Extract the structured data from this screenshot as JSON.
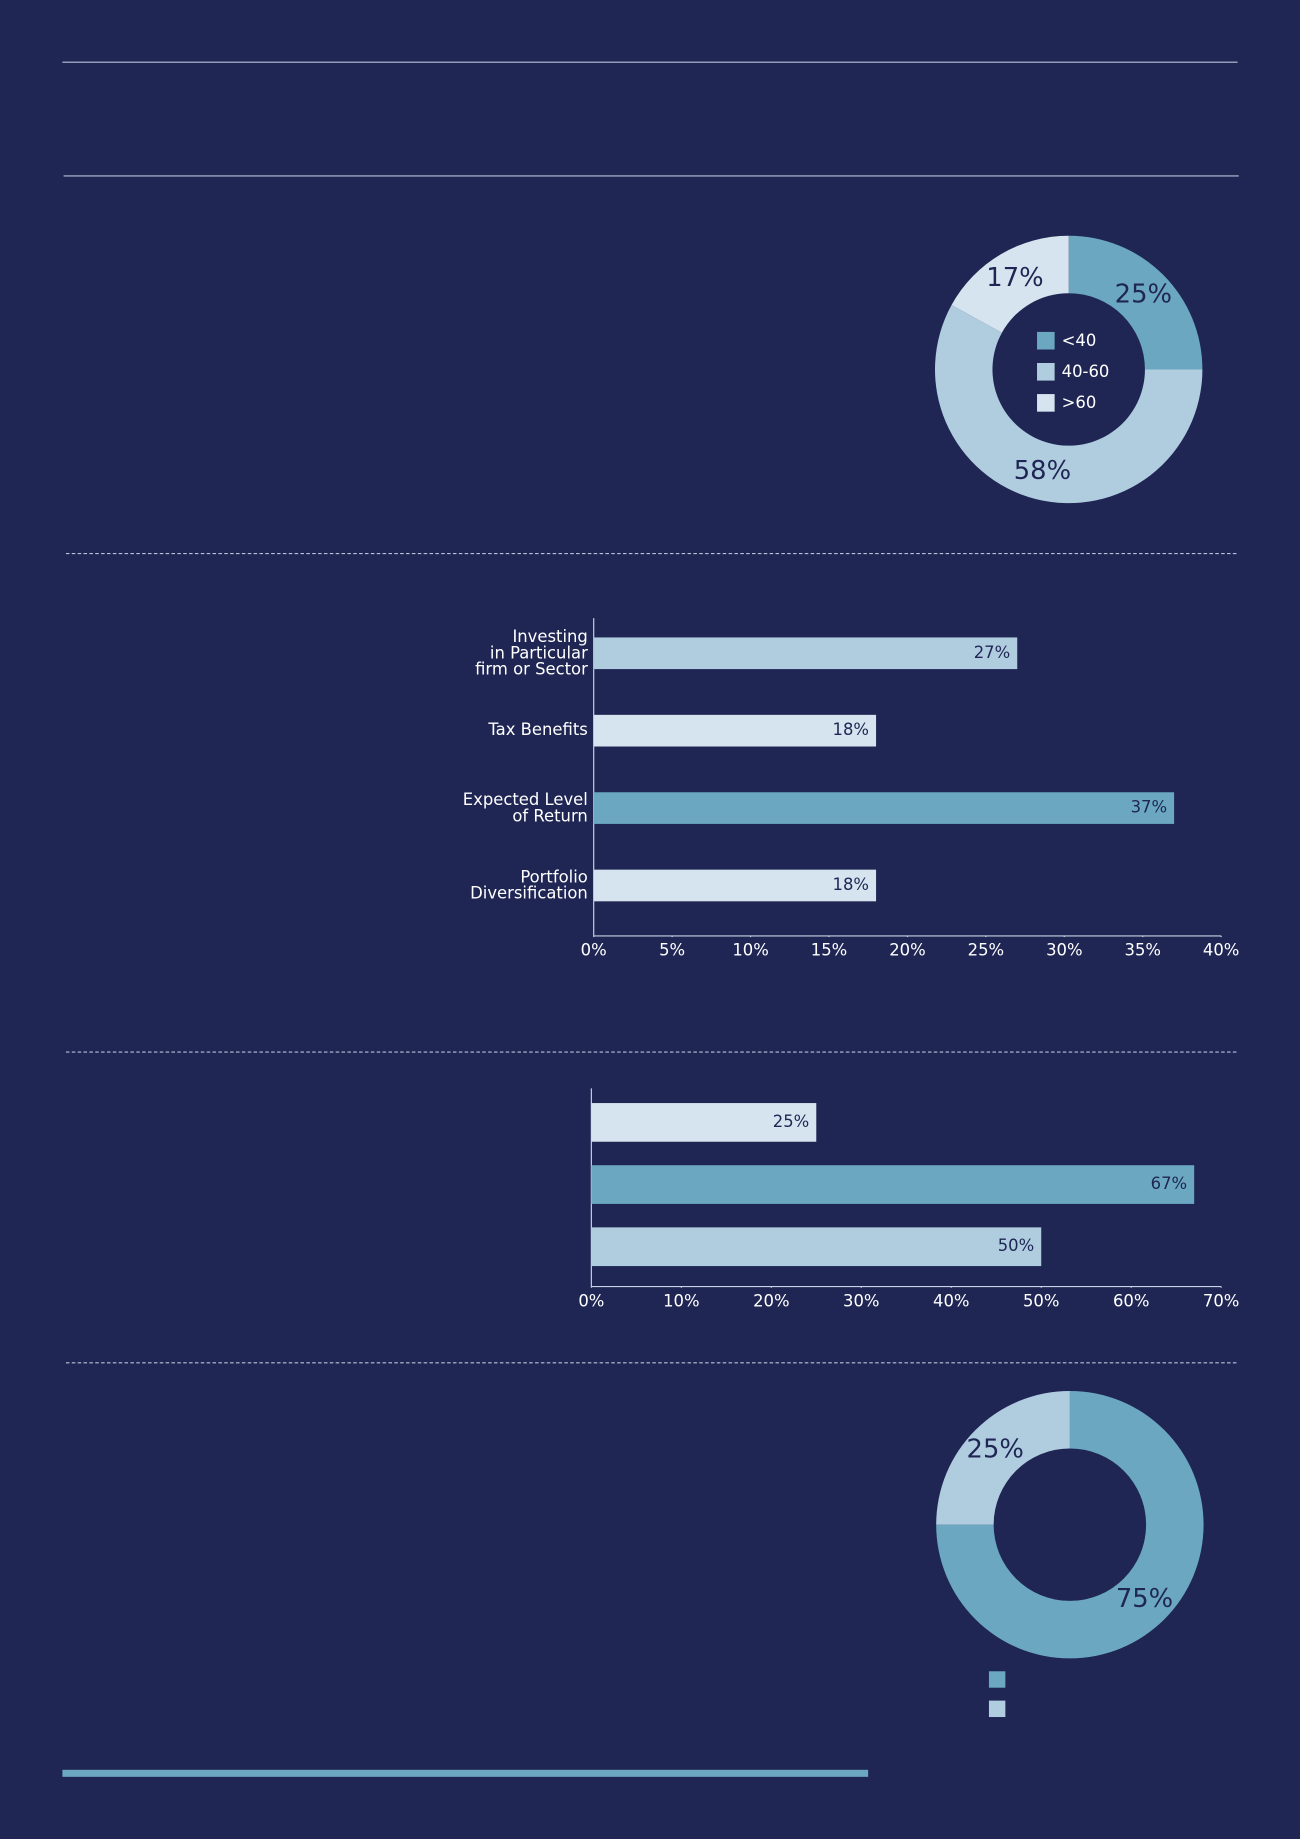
{
  "chart_data": [
    {
      "type": "donut",
      "categories": [
        "<40",
        "40-60",
        ">60"
      ],
      "values": [
        25,
        58,
        17
      ],
      "value_labels": [
        "25%",
        "58%",
        "17%"
      ],
      "colors": [
        "#6ba7c1",
        "#b0cde0",
        "#d5e4ee"
      ],
      "legend": "center"
    },
    {
      "type": "hbar",
      "categories": [
        "Investing\nin Particular\nfirm or Sector",
        "Tax Benefits",
        "Expected Level\nof Return",
        "Portfolio\nDiversification"
      ],
      "values": [
        27,
        18,
        37,
        18
      ],
      "value_labels": [
        "27%",
        "18%",
        "37%",
        "18%"
      ],
      "colors": [
        "#b0cde0",
        "#d5e4ee",
        "#6ba7c1",
        "#d5e4ee"
      ],
      "xlim": [
        0,
        40
      ],
      "xticks": [
        {
          "value": 0,
          "label": "0%"
        },
        {
          "value": 5,
          "label": "5%"
        },
        {
          "value": 10,
          "label": "10%"
        },
        {
          "value": 15,
          "label": "15%"
        },
        {
          "value": 20,
          "label": "20%"
        },
        {
          "value": 25,
          "label": "25%"
        },
        {
          "value": 30,
          "label": "30%"
        },
        {
          "value": 35,
          "label": "35%"
        },
        {
          "value": 40,
          "label": "40%"
        }
      ]
    },
    {
      "type": "hbar",
      "categories": [
        null,
        null,
        null
      ],
      "values": [
        25,
        67,
        50
      ],
      "value_labels": [
        "25%",
        "67%",
        "50%"
      ],
      "colors": [
        "#d5e4ee",
        "#6ba7c1",
        "#b0cde0"
      ],
      "xlim": [
        0,
        70
      ],
      "xticks": [
        {
          "value": 0,
          "label": "0%"
        },
        {
          "value": 10,
          "label": "10%"
        },
        {
          "value": 20,
          "label": "20%"
        },
        {
          "value": 30,
          "label": "30%"
        },
        {
          "value": 40,
          "label": "40%"
        },
        {
          "value": 50,
          "label": "50%"
        },
        {
          "value": 60,
          "label": "60%"
        },
        {
          "value": 70,
          "label": "70%"
        }
      ]
    },
    {
      "type": "donut",
      "values": [
        75,
        25
      ],
      "value_labels": [
        "75%",
        "25%"
      ],
      "colors": [
        "#6ba7c1",
        "#b0cde0"
      ],
      "legend": "below"
    }
  ]
}
